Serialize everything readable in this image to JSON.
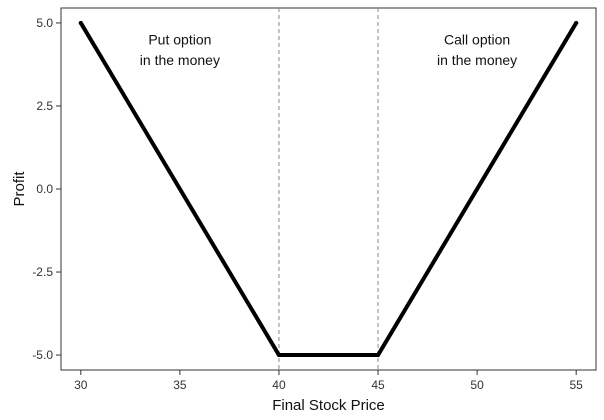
{
  "chart_data": {
    "type": "line",
    "xlabel": "Final Stock Price",
    "ylabel": "Profit",
    "xlim": [
      29,
      56
    ],
    "ylim": [
      -5.45,
      5.45
    ],
    "x_ticks": [
      30,
      35,
      40,
      45,
      50,
      55
    ],
    "x_tick_labels": [
      "30",
      "35",
      "40",
      "45",
      "50",
      "55"
    ],
    "y_ticks": [
      5.0,
      2.5,
      0.0,
      -2.5,
      -5.0
    ],
    "y_tick_labels": [
      "5.0",
      "2.5",
      "0.0",
      "-2.5",
      "-5.0"
    ],
    "grid": false,
    "series": [
      {
        "color": "#000000",
        "x": [
          30,
          40,
          45,
          55
        ],
        "y": [
          5,
          -5,
          -5,
          5
        ]
      }
    ],
    "reference_lines": [
      {
        "axis": "x",
        "value": 40,
        "style": "dashed",
        "color": "#888888"
      },
      {
        "axis": "x",
        "value": 45,
        "style": "dashed",
        "color": "#888888"
      }
    ],
    "annotations": [
      {
        "lines": [
          "Put option",
          "in the money"
        ],
        "x": 35,
        "y": 4.35
      },
      {
        "lines": [
          "Call option",
          "in the money"
        ],
        "x": 50,
        "y": 4.35
      }
    ]
  }
}
